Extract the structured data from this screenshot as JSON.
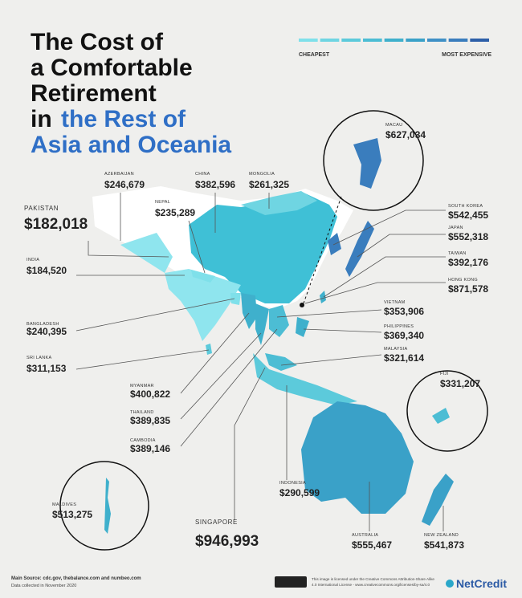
{
  "title": {
    "lines": [
      "The Cost of",
      "a Comfortable",
      "Retirement",
      "in"
    ],
    "highlight": [
      "the Rest of",
      "Asia and Oceania"
    ]
  },
  "legend": {
    "low": "CHEAPEST",
    "high": "MOST EXPENSIVE",
    "colors": [
      "#7fe0ea",
      "#6fd5e2",
      "#5ccadb",
      "#4cbdd4",
      "#3fb0cc",
      "#3aa1c8",
      "#3f90c6",
      "#3a7dbd",
      "#2d5fa8"
    ]
  },
  "countries": [
    {
      "name": "PAKISTAN",
      "cost": "$182,018"
    },
    {
      "name": "INDIA",
      "cost": "$184,520"
    },
    {
      "name": "AZERBAIJAN",
      "cost": "$246,679"
    },
    {
      "name": "CHINA",
      "cost": "$382,596"
    },
    {
      "name": "MONGOLIA",
      "cost": "$261,325"
    },
    {
      "name": "NEPAL",
      "cost": "$235,289"
    },
    {
      "name": "MACAU",
      "cost": "$627,034"
    },
    {
      "name": "SOUTH KOREA",
      "cost": "$542,455"
    },
    {
      "name": "JAPAN",
      "cost": "$552,318"
    },
    {
      "name": "TAIWAN",
      "cost": "$392,176"
    },
    {
      "name": "HONG KONG",
      "cost": "$871,578"
    },
    {
      "name": "VIETNAM",
      "cost": "$353,906"
    },
    {
      "name": "PHILIPPINES",
      "cost": "$369,340"
    },
    {
      "name": "MALAYSIA",
      "cost": "$321,614"
    },
    {
      "name": "BANGLADESH",
      "cost": "$240,395"
    },
    {
      "name": "SRI LANKA",
      "cost": "$311,153"
    },
    {
      "name": "MYANMAR",
      "cost": "$400,822"
    },
    {
      "name": "THAILAND",
      "cost": "$389,835"
    },
    {
      "name": "CAMBODIA",
      "cost": "$389,146"
    },
    {
      "name": "FIJI",
      "cost": "$331,207"
    },
    {
      "name": "INDONESIA",
      "cost": "$290,599"
    },
    {
      "name": "MALDIVES",
      "cost": "$513,275"
    },
    {
      "name": "SINGAPORE",
      "cost": "$946,993"
    },
    {
      "name": "AUSTRALIA",
      "cost": "$555,467"
    },
    {
      "name": "NEW ZEALAND",
      "cost": "$541,873"
    }
  ],
  "footer": {
    "source": "Main Source: cdc.gov, thebalance.com and numbeo.com",
    "date": "Data collected in November 2020",
    "license": "This image is licensed under the Creative Commons Attribution-Share Alike 4.0 International License - www.creativecommons.org/licenses/by-sa/4.0",
    "brand": "NetCredit"
  }
}
